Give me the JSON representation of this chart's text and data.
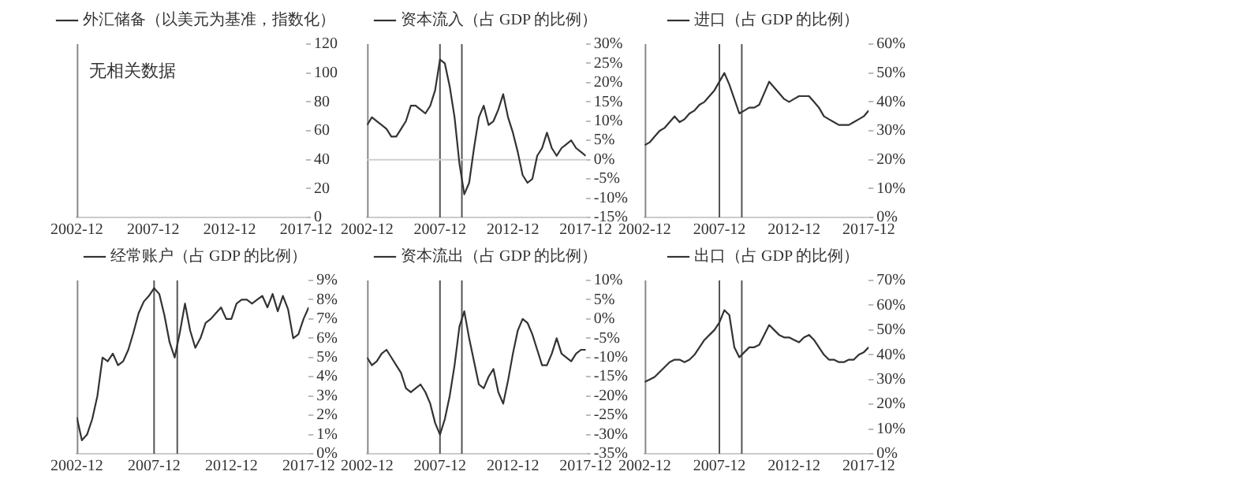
{
  "chart_data": [
    {
      "type": "line",
      "legend": "top",
      "marker": "none",
      "annotations": [
        "无相关数据"
      ],
      "series": [
        {
          "name": "外汇储备（以美元为基准，指数化）",
          "color": "#333333",
          "values": [
            null,
            null,
            null,
            null
          ]
        }
      ],
      "categories": [
        "2002-12",
        "2007-12",
        "2012-12",
        "2017-12"
      ],
      "ylim": [
        0,
        120
      ],
      "yticks": [
        0,
        20,
        40,
        60,
        80,
        100,
        120
      ]
    },
    {
      "type": "line",
      "legend": "top",
      "marker": "none",
      "x": [
        "2002-12",
        "2003-04",
        "2003-08",
        "2003-12",
        "2004-04",
        "2004-08",
        "2004-12",
        "2005-04",
        "2005-08",
        "2005-12",
        "2006-04",
        "2006-08",
        "2006-12",
        "2007-04",
        "2007-08",
        "2007-12",
        "2008-04",
        "2008-08",
        "2008-12",
        "2009-04",
        "2009-08",
        "2009-12",
        "2010-04",
        "2010-08",
        "2010-12",
        "2011-04",
        "2011-08",
        "2011-12",
        "2012-04",
        "2012-08",
        "2012-12",
        "2013-04",
        "2013-08",
        "2013-12",
        "2014-04",
        "2014-08",
        "2014-12",
        "2015-04",
        "2015-08",
        "2015-12",
        "2016-04",
        "2016-08",
        "2016-12",
        "2017-04",
        "2017-08",
        "2017-12"
      ],
      "series": [
        {
          "name": "资本流入（占 GDP 的比例）",
          "color": "#333333",
          "values": [
            9,
            11,
            10,
            9,
            8,
            6,
            6,
            8,
            10,
            14,
            14,
            13,
            12,
            14,
            18,
            26,
            25,
            19,
            11,
            -1,
            -9,
            -6,
            3,
            11,
            14,
            9,
            10,
            13,
            17,
            11,
            7,
            2,
            -4,
            -6,
            -5,
            1,
            3,
            7,
            3,
            1,
            3,
            4,
            5,
            3,
            2,
            1
          ]
        }
      ],
      "xlim": [
        "2002-12",
        "2017-12"
      ],
      "xticks": [
        {
          "value": "2002-12",
          "label": "2002-12"
        },
        {
          "value": "2007-12",
          "label": "2007-12"
        },
        {
          "value": "2012-12",
          "label": "2012-12"
        },
        {
          "value": "2017-12",
          "label": "2017-12"
        }
      ],
      "ylim": [
        -15,
        30
      ],
      "yticks": [
        {
          "value": -15,
          "label": "-15%"
        },
        {
          "value": -10,
          "label": "-10%"
        },
        {
          "value": -5,
          "label": "-5%"
        },
        {
          "value": 0,
          "label": "0%"
        },
        {
          "value": 5,
          "label": "5%"
        },
        {
          "value": 10,
          "label": "10%"
        },
        {
          "value": 15,
          "label": "15%"
        },
        {
          "value": 20,
          "label": "20%"
        },
        {
          "value": 25,
          "label": "25%"
        },
        {
          "value": 30,
          "label": "30%"
        }
      ],
      "ref_lines": [
        {
          "axis": "x",
          "value": "2007-12",
          "color": "#555555"
        },
        {
          "axis": "x",
          "value": "2009-06",
          "color": "#555555"
        },
        {
          "axis": "y",
          "value": 0,
          "color": "#d0d0d0"
        }
      ]
    },
    {
      "type": "line",
      "legend": "top",
      "marker": "none",
      "x": [
        "2002-12",
        "2003-04",
        "2003-08",
        "2003-12",
        "2004-04",
        "2004-08",
        "2004-12",
        "2005-04",
        "2005-08",
        "2005-12",
        "2006-04",
        "2006-08",
        "2006-12",
        "2007-04",
        "2007-08",
        "2007-12",
        "2008-04",
        "2008-08",
        "2008-12",
        "2009-04",
        "2009-08",
        "2009-12",
        "2010-04",
        "2010-08",
        "2010-12",
        "2011-04",
        "2011-08",
        "2011-12",
        "2012-04",
        "2012-08",
        "2012-12",
        "2013-04",
        "2013-08",
        "2013-12",
        "2014-04",
        "2014-08",
        "2014-12",
        "2015-04",
        "2015-08",
        "2015-12",
        "2016-04",
        "2016-08",
        "2016-12",
        "2017-04",
        "2017-08",
        "2017-12"
      ],
      "series": [
        {
          "name": "进口（占 GDP 的比例）",
          "color": "#333333",
          "values": [
            25,
            26,
            28,
            30,
            31,
            33,
            35,
            33,
            34,
            36,
            37,
            39,
            40,
            42,
            44,
            47,
            50,
            46,
            41,
            36,
            37,
            38,
            38,
            39,
            43,
            47,
            45,
            43,
            41,
            40,
            41,
            42,
            42,
            42,
            40,
            38,
            35,
            34,
            33,
            32,
            32,
            32,
            33,
            34,
            35,
            37
          ]
        }
      ],
      "xlim": [
        "2002-12",
        "2017-12"
      ],
      "xticks": [
        {
          "value": "2002-12",
          "label": "2002-12"
        },
        {
          "value": "2007-12",
          "label": "2007-12"
        },
        {
          "value": "2012-12",
          "label": "2012-12"
        },
        {
          "value": "2017-12",
          "label": "2017-12"
        }
      ],
      "ylim": [
        0,
        60
      ],
      "yticks": [
        {
          "value": 0,
          "label": "0%"
        },
        {
          "value": 10,
          "label": "10%"
        },
        {
          "value": 20,
          "label": "20%"
        },
        {
          "value": 30,
          "label": "30%"
        },
        {
          "value": 40,
          "label": "40%"
        },
        {
          "value": 50,
          "label": "50%"
        },
        {
          "value": 60,
          "label": "60%"
        }
      ],
      "ref_lines": [
        {
          "axis": "x",
          "value": "2007-12",
          "color": "#555555"
        },
        {
          "axis": "x",
          "value": "2009-06",
          "color": "#555555"
        }
      ]
    },
    {
      "type": "line",
      "legend": "top",
      "marker": "none",
      "x": [
        "2002-12",
        "2003-04",
        "2003-08",
        "2003-12",
        "2004-04",
        "2004-08",
        "2004-12",
        "2005-04",
        "2005-08",
        "2005-12",
        "2006-04",
        "2006-08",
        "2006-12",
        "2007-04",
        "2007-08",
        "2007-12",
        "2008-04",
        "2008-08",
        "2008-12",
        "2009-04",
        "2009-08",
        "2009-12",
        "2010-04",
        "2010-08",
        "2010-12",
        "2011-04",
        "2011-08",
        "2011-12",
        "2012-04",
        "2012-08",
        "2012-12",
        "2013-04",
        "2013-08",
        "2013-12",
        "2014-04",
        "2014-08",
        "2014-12",
        "2015-04",
        "2015-08",
        "2015-12",
        "2016-04",
        "2016-08",
        "2016-12",
        "2017-04",
        "2017-08",
        "2017-12"
      ],
      "series": [
        {
          "name": "经常账户（占 GDP 的比例）",
          "color": "#333333",
          "values": [
            1.9,
            0.7,
            1.0,
            1.8,
            3.0,
            5.0,
            4.8,
            5.2,
            4.6,
            4.8,
            5.4,
            6.3,
            7.3,
            7.9,
            8.2,
            8.6,
            8.3,
            7.2,
            5.8,
            5.0,
            6.3,
            7.8,
            6.4,
            5.5,
            6.0,
            6.8,
            7.0,
            7.3,
            7.6,
            7.0,
            7.0,
            7.8,
            8.0,
            8.0,
            7.8,
            8.0,
            8.2,
            7.6,
            8.3,
            7.4,
            8.2,
            7.5,
            6.0,
            6.2,
            7.0,
            7.6
          ]
        }
      ],
      "xlim": [
        "2002-12",
        "2017-12"
      ],
      "xticks": [
        {
          "value": "2002-12",
          "label": "2002-12"
        },
        {
          "value": "2007-12",
          "label": "2007-12"
        },
        {
          "value": "2012-12",
          "label": "2012-12"
        },
        {
          "value": "2017-12",
          "label": "2017-12"
        }
      ],
      "ylim": [
        0,
        9
      ],
      "yticks": [
        {
          "value": 0,
          "label": "0%"
        },
        {
          "value": 1,
          "label": "1%"
        },
        {
          "value": 2,
          "label": "2%"
        },
        {
          "value": 3,
          "label": "3%"
        },
        {
          "value": 4,
          "label": "4%"
        },
        {
          "value": 5,
          "label": "5%"
        },
        {
          "value": 6,
          "label": "6%"
        },
        {
          "value": 7,
          "label": "7%"
        },
        {
          "value": 8,
          "label": "8%"
        },
        {
          "value": 9,
          "label": "9%"
        }
      ],
      "ref_lines": [
        {
          "axis": "x",
          "value": "2007-12",
          "color": "#555555"
        },
        {
          "axis": "x",
          "value": "2009-06",
          "color": "#555555"
        }
      ]
    },
    {
      "type": "line",
      "legend": "top",
      "marker": "none",
      "x": [
        "2002-12",
        "2003-04",
        "2003-08",
        "2003-12",
        "2004-04",
        "2004-08",
        "2004-12",
        "2005-04",
        "2005-08",
        "2005-12",
        "2006-04",
        "2006-08",
        "2006-12",
        "2007-04",
        "2007-08",
        "2007-12",
        "2008-04",
        "2008-08",
        "2008-12",
        "2009-04",
        "2009-08",
        "2009-12",
        "2010-04",
        "2010-08",
        "2010-12",
        "2011-04",
        "2011-08",
        "2011-12",
        "2012-04",
        "2012-08",
        "2012-12",
        "2013-04",
        "2013-08",
        "2013-12",
        "2014-04",
        "2014-08",
        "2014-12",
        "2015-04",
        "2015-08",
        "2015-12",
        "2016-04",
        "2016-08",
        "2016-12",
        "2017-04",
        "2017-08",
        "2017-12"
      ],
      "series": [
        {
          "name": "资本流出（占 GDP 的比例）",
          "color": "#333333",
          "values": [
            -10,
            -12,
            -11,
            -9,
            -8,
            -10,
            -12,
            -14,
            -18,
            -19,
            -18,
            -17,
            -19,
            -22,
            -27,
            -30,
            -26,
            -20,
            -12,
            -2,
            2,
            -5,
            -11,
            -17,
            -18,
            -15,
            -13,
            -19,
            -22,
            -16,
            -9,
            -3,
            0,
            -1,
            -4,
            -8,
            -12,
            -12,
            -9,
            -5,
            -9,
            -10,
            -11,
            -9,
            -8,
            -8
          ]
        }
      ],
      "xlim": [
        "2002-12",
        "2017-12"
      ],
      "xticks": [
        {
          "value": "2002-12",
          "label": "2002-12"
        },
        {
          "value": "2007-12",
          "label": "2007-12"
        },
        {
          "value": "2012-12",
          "label": "2012-12"
        },
        {
          "value": "2017-12",
          "label": "2017-12"
        }
      ],
      "ylim": [
        -35,
        10
      ],
      "yticks": [
        {
          "value": -35,
          "label": "-35%"
        },
        {
          "value": -30,
          "label": "-30%"
        },
        {
          "value": -25,
          "label": "-25%"
        },
        {
          "value": -20,
          "label": "-20%"
        },
        {
          "value": -15,
          "label": "-15%"
        },
        {
          "value": -10,
          "label": "-10%"
        },
        {
          "value": -5,
          "label": "-5%"
        },
        {
          "value": 0,
          "label": "0%"
        },
        {
          "value": 5,
          "label": "5%"
        },
        {
          "value": 10,
          "label": "10%"
        }
      ],
      "ref_lines": [
        {
          "axis": "x",
          "value": "2007-12",
          "color": "#555555"
        },
        {
          "axis": "x",
          "value": "2009-06",
          "color": "#555555"
        }
      ]
    },
    {
      "type": "line",
      "legend": "top",
      "marker": "none",
      "x": [
        "2002-12",
        "2003-04",
        "2003-08",
        "2003-12",
        "2004-04",
        "2004-08",
        "2004-12",
        "2005-04",
        "2005-08",
        "2005-12",
        "2006-04",
        "2006-08",
        "2006-12",
        "2007-04",
        "2007-08",
        "2007-12",
        "2008-04",
        "2008-08",
        "2008-12",
        "2009-04",
        "2009-08",
        "2009-12",
        "2010-04",
        "2010-08",
        "2010-12",
        "2011-04",
        "2011-08",
        "2011-12",
        "2012-04",
        "2012-08",
        "2012-12",
        "2013-04",
        "2013-08",
        "2013-12",
        "2014-04",
        "2014-08",
        "2014-12",
        "2015-04",
        "2015-08",
        "2015-12",
        "2016-04",
        "2016-08",
        "2016-12",
        "2017-04",
        "2017-08",
        "2017-12"
      ],
      "series": [
        {
          "name": "出口（占 GDP 的比例）",
          "color": "#333333",
          "values": [
            29,
            30,
            31,
            33,
            35,
            37,
            38,
            38,
            37,
            38,
            40,
            43,
            46,
            48,
            50,
            53,
            58,
            56,
            43,
            39,
            41,
            43,
            43,
            44,
            48,
            52,
            50,
            48,
            47,
            47,
            46,
            45,
            47,
            48,
            46,
            43,
            40,
            38,
            38,
            37,
            37,
            38,
            38,
            40,
            41,
            43
          ]
        }
      ],
      "xlim": [
        "2002-12",
        "2017-12"
      ],
      "xticks": [
        {
          "value": "2002-12",
          "label": "2002-12"
        },
        {
          "value": "2007-12",
          "label": "2007-12"
        },
        {
          "value": "2012-12",
          "label": "2012-12"
        },
        {
          "value": "2017-12",
          "label": "2017-12"
        }
      ],
      "ylim": [
        0,
        70
      ],
      "yticks": [
        {
          "value": 0,
          "label": "0%"
        },
        {
          "value": 10,
          "label": "10%"
        },
        {
          "value": 20,
          "label": "20%"
        },
        {
          "value": 30,
          "label": "30%"
        },
        {
          "value": 40,
          "label": "40%"
        },
        {
          "value": 50,
          "label": "50%"
        },
        {
          "value": 60,
          "label": "60%"
        },
        {
          "value": 70,
          "label": "70%"
        }
      ],
      "ref_lines": [
        {
          "axis": "x",
          "value": "2007-12",
          "color": "#555555"
        },
        {
          "axis": "x",
          "value": "2009-06",
          "color": "#555555"
        }
      ]
    }
  ]
}
